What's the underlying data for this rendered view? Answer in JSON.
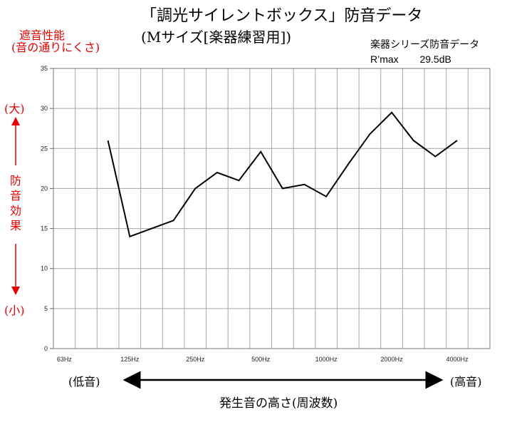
{
  "header": {
    "title_line1": "「調光サイレントボックス」防音データ",
    "title_line2": "(Mサイズ[楽器練習用])"
  },
  "y_axis_label": {
    "line1": "遮音性能",
    "line2": "(音の通りにくさ)"
  },
  "legend": {
    "series_label": "楽器シリーズ防音データ",
    "rmax_label": "R’max",
    "rmax_value": "29.5dB"
  },
  "left_indicator": {
    "top": "(大)",
    "chars": [
      "防",
      "音",
      "効",
      "果"
    ],
    "bottom": "(小)"
  },
  "bottom_indicator": {
    "low": "(低音)",
    "high": "(高音)",
    "axis_title": "発生音の高さ(周波数)"
  },
  "colors": {
    "accent_red": "#e60000",
    "line": "#000000",
    "grid": "#a6a6a6"
  },
  "chart_data": {
    "type": "line",
    "title": "「調光サイレントボックス」防音データ",
    "subtitle": "(Mサイズ[楽器練習用])",
    "ylabel": "遮音性能(音の通りにくさ)",
    "xlabel": "発生音の高さ(周波数)",
    "ylim": [
      0,
      35
    ],
    "yticks": [
      0,
      5,
      10,
      15,
      20,
      25,
      30,
      35
    ],
    "xtick_labels": [
      "63Hz",
      "125Hz",
      "250Hz",
      "500Hz",
      "1000Hz",
      "2000Hz",
      "4000Hz"
    ],
    "grid": true,
    "x": [
      "63Hz",
      "80Hz",
      "100Hz",
      "125Hz",
      "160Hz",
      "200Hz",
      "250Hz",
      "315Hz",
      "400Hz",
      "500Hz",
      "630Hz",
      "800Hz",
      "1000Hz",
      "1250Hz",
      "1600Hz",
      "2000Hz",
      "2500Hz",
      "3150Hz",
      "4000Hz",
      "5000Hz"
    ],
    "series": [
      {
        "values": [
          null,
          null,
          26,
          14,
          15,
          16,
          20,
          22,
          21,
          24.6,
          20,
          20.5,
          19,
          23,
          26.8,
          29.5,
          26,
          24,
          26,
          null
        ]
      }
    ]
  }
}
